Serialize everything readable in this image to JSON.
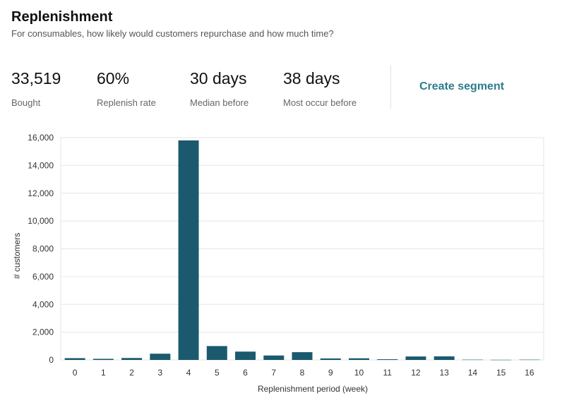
{
  "header": {
    "title": "Replenishment",
    "subtitle": "For consumables, how likely would customers repurchase and how much time?"
  },
  "stats": [
    {
      "value": "33,519",
      "label": "Bought"
    },
    {
      "value": "60%",
      "label": "Replenish rate"
    },
    {
      "value": "30 days",
      "label": "Median before"
    },
    {
      "value": "38 days",
      "label": "Most occur before"
    }
  ],
  "actions": {
    "create_segment": "Create segment"
  },
  "colors": {
    "bar": "#1b5a6e",
    "link": "#2e7d8c",
    "grid": "#e6e6e6"
  },
  "chart_data": {
    "type": "bar",
    "categories": [
      "0",
      "1",
      "2",
      "3",
      "4",
      "5",
      "6",
      "7",
      "8",
      "9",
      "10",
      "11",
      "12",
      "13",
      "14",
      "15",
      "16"
    ],
    "values": [
      130,
      80,
      140,
      450,
      15800,
      1000,
      600,
      320,
      560,
      110,
      120,
      50,
      250,
      260,
      20,
      10,
      20
    ],
    "xlabel": "Replenishment period (week)",
    "ylabel": "# customers",
    "ylim": [
      0,
      16000
    ],
    "yticks": [
      0,
      2000,
      4000,
      6000,
      8000,
      10000,
      12000,
      14000,
      16000
    ],
    "grid": true
  }
}
